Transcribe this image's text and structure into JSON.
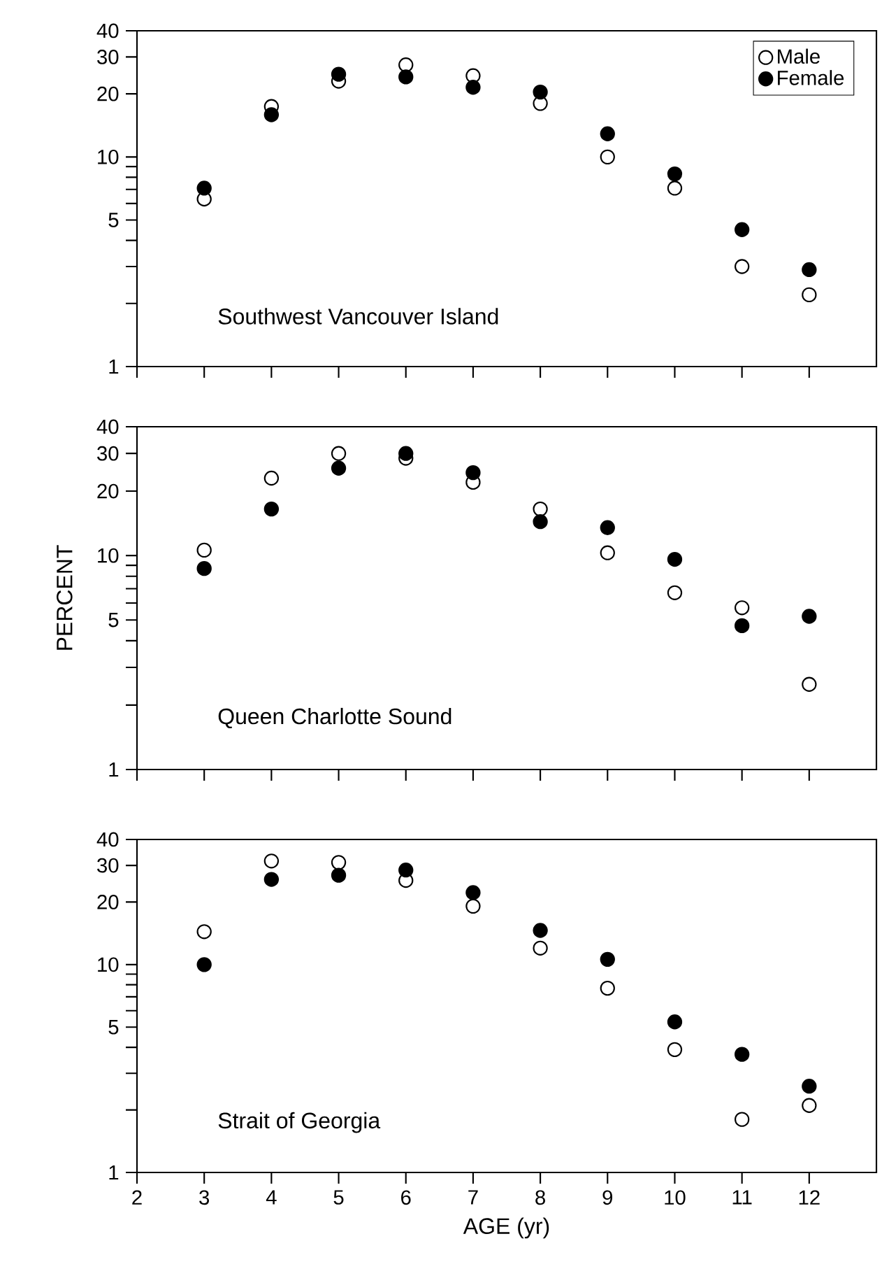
{
  "chart_data": [
    {
      "type": "scatter",
      "x": [
        3,
        4,
        5,
        6,
        7,
        8,
        9,
        10,
        11,
        12
      ],
      "xlim": [
        2,
        13
      ],
      "xticks": [
        2,
        3,
        4,
        5,
        6,
        7,
        8,
        9,
        10,
        11,
        12
      ],
      "ylim": [
        1,
        40
      ],
      "log": "y",
      "yticks": [
        1,
        {
          "value": 2,
          "label": null
        },
        {
          "value": 3,
          "label": null
        },
        {
          "value": 4,
          "label": null
        },
        5,
        {
          "value": 6,
          "label": null
        },
        {
          "value": 7,
          "label": null
        },
        {
          "value": 8,
          "label": null
        },
        {
          "value": 9,
          "label": null
        },
        10,
        20,
        30,
        40
      ],
      "tick_labels": "y",
      "legend": "top right",
      "annotations": [
        "Southwest Vancouver Island"
      ],
      "series": [
        {
          "name": "Male",
          "color": "#ffffff",
          "values": [
            6.3,
            17.4,
            23,
            27.5,
            24.4,
            18,
            10,
            7.1,
            3.0,
            2.2
          ]
        },
        {
          "name": "Female",
          "color": "#000000",
          "values": [
            7.1,
            15.9,
            24.8,
            24.1,
            21.5,
            20.4,
            12.9,
            8.3,
            4.5,
            2.9
          ]
        }
      ]
    },
    {
      "type": "scatter",
      "x": [
        3,
        4,
        5,
        6,
        7,
        8,
        9,
        10,
        11,
        12
      ],
      "xlim": [
        2,
        13
      ],
      "xticks": [
        2,
        3,
        4,
        5,
        6,
        7,
        8,
        9,
        10,
        11,
        12
      ],
      "ylim": [
        1,
        40
      ],
      "log": "y",
      "yticks": [
        1,
        {
          "value": 2,
          "label": null
        },
        {
          "value": 3,
          "label": null
        },
        {
          "value": 4,
          "label": null
        },
        5,
        {
          "value": 6,
          "label": null
        },
        {
          "value": 7,
          "label": null
        },
        {
          "value": 8,
          "label": null
        },
        {
          "value": 9,
          "label": null
        },
        10,
        20,
        30,
        40
      ],
      "tick_labels": "y",
      "ylabel": "PERCENT",
      "annotations": [
        "Queen Charlotte Sound"
      ],
      "series": [
        {
          "color": "#ffffff",
          "values": [
            10.6,
            23,
            30,
            28.5,
            22,
            16.5,
            10.3,
            6.7,
            5.7,
            2.5
          ]
        },
        {
          "color": "#000000",
          "values": [
            8.7,
            16.5,
            25.6,
            30,
            24.4,
            14.4,
            13.5,
            9.6,
            4.7,
            5.2
          ]
        }
      ]
    },
    {
      "type": "scatter",
      "x": [
        3,
        4,
        5,
        6,
        7,
        8,
        9,
        10,
        11,
        12
      ],
      "xlim": [
        2,
        13
      ],
      "xticks": [
        2,
        3,
        4,
        5,
        6,
        7,
        8,
        9,
        10,
        11,
        12
      ],
      "ylim": [
        1,
        40
      ],
      "log": "y",
      "yticks": [
        1,
        {
          "value": 2,
          "label": null
        },
        {
          "value": 3,
          "label": null
        },
        {
          "value": 4,
          "label": null
        },
        5,
        {
          "value": 6,
          "label": null
        },
        {
          "value": 7,
          "label": null
        },
        {
          "value": 8,
          "label": null
        },
        {
          "value": 9,
          "label": null
        },
        10,
        20,
        30,
        40
      ],
      "xlabel": "AGE (yr)",
      "annotations": [
        "Strait of Georgia"
      ],
      "series": [
        {
          "color": "#ffffff",
          "values": [
            14.4,
            31.5,
            31,
            25.4,
            19.1,
            12,
            7.7,
            3.9,
            1.8,
            2.1
          ]
        },
        {
          "color": "#000000",
          "values": [
            10,
            25.7,
            26.9,
            28.5,
            22.2,
            14.6,
            10.6,
            5.3,
            3.7,
            2.6
          ]
        }
      ]
    }
  ]
}
